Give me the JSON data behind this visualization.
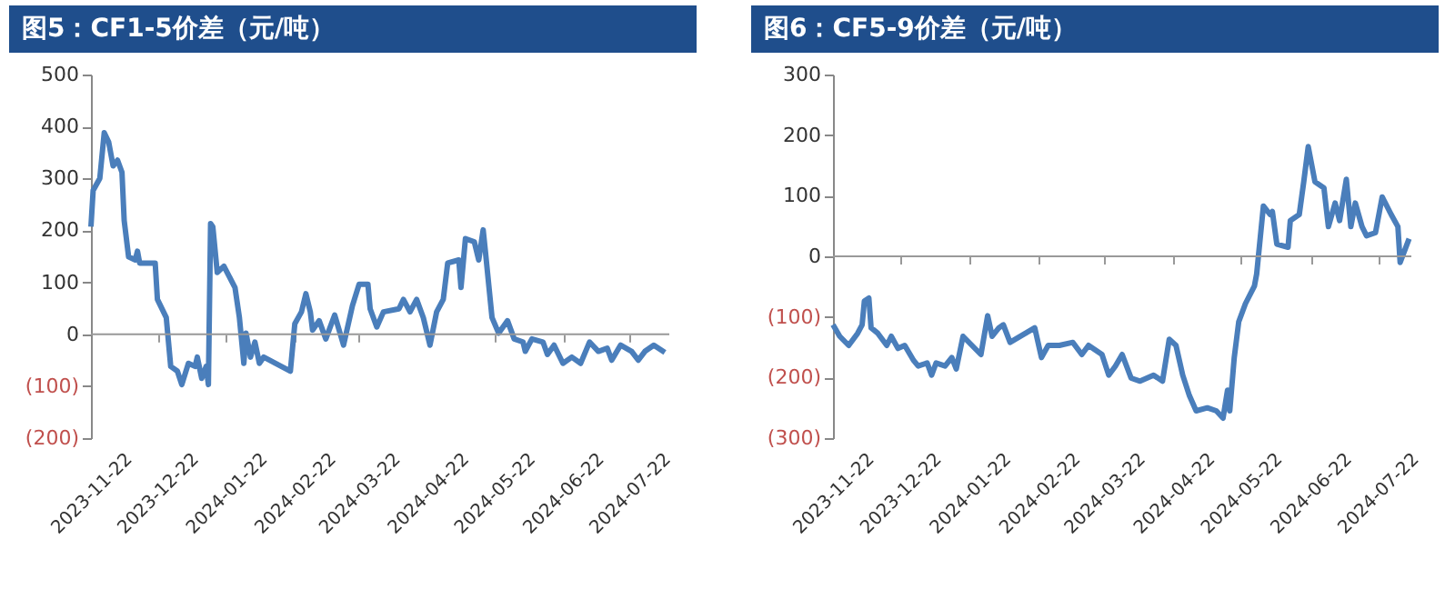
{
  "chart_data": [
    {
      "type": "line",
      "title": "图5：CF1-5价差（元/吨）",
      "grid": false,
      "ref_lines": [
        {
          "axis": "y",
          "value": 0,
          "color": "#999999"
        }
      ],
      "marker": "none",
      "line_style": "solid",
      "x": [
        "2023-11-22",
        "2023-11-23",
        "2023-11-26",
        "2023-11-28",
        "2023-11-30",
        "2023-12-02",
        "2023-12-04",
        "2023-12-06",
        "2023-12-07",
        "2023-12-09",
        "2023-12-12",
        "2023-12-13",
        "2023-12-14",
        "2023-12-21",
        "2023-12-22",
        "2023-12-26",
        "2023-12-28",
        "2023-12-31",
        "2024-01-02",
        "2024-01-05",
        "2024-01-08",
        "2024-01-09",
        "2024-01-11",
        "2024-01-13",
        "2024-01-14",
        "2024-01-15",
        "2024-01-16",
        "2024-01-18",
        "2024-01-21",
        "2024-01-26",
        "2024-01-28",
        "2024-01-30",
        "2024-01-31",
        "2024-02-02",
        "2024-02-04",
        "2024-02-06",
        "2024-02-08",
        "2024-02-20",
        "2024-02-22",
        "2024-02-25",
        "2024-02-27",
        "2024-02-29",
        "2024-03-01",
        "2024-03-04",
        "2024-03-07",
        "2024-03-11",
        "2024-03-15",
        "2024-03-19",
        "2024-03-22",
        "2024-03-26",
        "2024-03-27",
        "2024-03-30",
        "2024-04-02",
        "2024-04-09",
        "2024-04-11",
        "2024-04-14",
        "2024-04-17",
        "2024-04-20",
        "2024-04-23",
        "2024-04-26",
        "2024-04-29",
        "2024-05-01",
        "2024-05-06",
        "2024-05-07",
        "2024-05-09",
        "2024-05-13",
        "2024-05-15",
        "2024-05-17",
        "2024-05-18",
        "2024-05-21",
        "2024-05-24",
        "2024-05-28",
        "2024-05-31",
        "2024-06-04",
        "2024-06-05",
        "2024-06-08",
        "2024-06-13",
        "2024-06-15",
        "2024-06-18",
        "2024-06-22",
        "2024-06-26",
        "2024-06-30",
        "2024-07-04",
        "2024-07-08",
        "2024-07-12",
        "2024-07-14",
        "2024-07-18",
        "2024-07-23",
        "2024-07-26",
        "2024-07-29",
        "2024-08-02",
        "2024-08-07"
      ],
      "series": [
        {
          "color": "#4a7ebb",
          "values": [
            207,
            277,
            300,
            388,
            370,
            324,
            335,
            312,
            219,
            149,
            143,
            160,
            137,
            137,
            67,
            32,
            -62,
            -71,
            -97,
            -56,
            -62,
            -44,
            -85,
            -62,
            -97,
            213,
            207,
            119,
            131,
            90,
            32,
            -56,
            2,
            -44,
            -15,
            -56,
            -44,
            -71,
            20,
            43,
            78,
            43,
            8,
            26,
            -9,
            37,
            -21,
            55,
            96,
            96,
            49,
            14,
            43,
            49,
            67,
            43,
            67,
            32,
            -21,
            43,
            67,
            137,
            143,
            90,
            184,
            178,
            143,
            201,
            160,
            32,
            2,
            26,
            -9,
            -15,
            -33,
            -9,
            -15,
            -39,
            -21,
            -56,
            -44,
            -56,
            -15,
            -33,
            -27,
            -50,
            -21,
            -33,
            -50,
            -33,
            -21,
            -35
          ]
        }
      ],
      "xlim": [
        "2023-11-22",
        "2024-08-09"
      ],
      "xticks": [
        "2023-11-22",
        "2023-12-22",
        "2024-01-22",
        "2024-02-22",
        "2024-03-22",
        "2024-04-22",
        "2024-05-22",
        "2024-06-22",
        "2024-07-22"
      ],
      "ylim": [
        -200,
        500
      ],
      "yticks": [
        {
          "value": -200,
          "label": "(200)"
        },
        {
          "value": -100,
          "label": "(100)"
        },
        0,
        100,
        200,
        300,
        400,
        500
      ]
    },
    {
      "type": "line",
      "title": "图6：CF5-9价差（元/吨）",
      "grid": false,
      "ref_lines": [
        {
          "axis": "y",
          "value": 0,
          "color": "#999999"
        }
      ],
      "marker": "none",
      "line_style": "solid",
      "x": [
        "2023-11-22",
        "2023-11-25",
        "2023-11-29",
        "2023-12-03",
        "2023-12-05",
        "2023-12-06",
        "2023-12-08",
        "2023-12-09",
        "2023-12-12",
        "2023-12-16",
        "2023-12-18",
        "2023-12-21",
        "2023-12-24",
        "2023-12-28",
        "2023-12-30",
        "2024-01-03",
        "2024-01-05",
        "2024-01-07",
        "2024-01-11",
        "2024-01-14",
        "2024-01-16",
        "2024-01-19",
        "2024-01-23",
        "2024-01-27",
        "2024-01-30",
        "2024-02-01",
        "2024-02-04",
        "2024-02-06",
        "2024-02-09",
        "2024-02-20",
        "2024-02-23",
        "2024-02-26",
        "2024-03-02",
        "2024-03-08",
        "2024-03-12",
        "2024-03-15",
        "2024-03-21",
        "2024-03-24",
        "2024-03-27",
        "2024-03-30",
        "2024-04-03",
        "2024-04-07",
        "2024-04-13",
        "2024-04-17",
        "2024-04-20",
        "2024-04-23",
        "2024-04-26",
        "2024-04-29",
        "2024-05-02",
        "2024-05-07",
        "2024-05-11",
        "2024-05-14",
        "2024-05-16",
        "2024-05-17",
        "2024-05-19",
        "2024-05-21",
        "2024-05-24",
        "2024-05-28",
        "2024-05-29",
        "2024-06-01",
        "2024-06-04",
        "2024-06-05",
        "2024-06-07",
        "2024-06-12",
        "2024-06-13",
        "2024-06-17",
        "2024-06-19",
        "2024-06-21",
        "2024-06-24",
        "2024-06-28",
        "2024-06-30",
        "2024-07-03",
        "2024-07-05",
        "2024-07-08",
        "2024-07-10",
        "2024-07-12",
        "2024-07-15",
        "2024-07-17",
        "2024-07-21",
        "2024-07-24",
        "2024-07-28",
        "2024-07-31",
        "2024-08-01",
        "2024-08-05"
      ],
      "series": [
        {
          "color": "#4a7ebb",
          "values": [
            -113,
            -132,
            -147,
            -127,
            -113,
            -74,
            -69,
            -118,
            -127,
            -147,
            -132,
            -152,
            -147,
            -172,
            -181,
            -176,
            -196,
            -176,
            -181,
            -167,
            -186,
            -132,
            -147,
            -162,
            -98,
            -132,
            -118,
            -113,
            -142,
            -118,
            -167,
            -147,
            -147,
            -142,
            -162,
            -147,
            -162,
            -196,
            -181,
            -162,
            -201,
            -206,
            -196,
            -206,
            -137,
            -147,
            -196,
            -230,
            -255,
            -250,
            -255,
            -267,
            -221,
            -255,
            -167,
            -108,
            -78,
            -49,
            -29,
            83,
            69,
            74,
            20,
            15,
            59,
            69,
            123,
            181,
            123,
            113,
            49,
            88,
            59,
            127,
            49,
            88,
            49,
            34,
            39,
            98,
            69,
            49,
            -10,
            29
          ]
        }
      ],
      "xlim": [
        "2023-11-22",
        "2024-08-06"
      ],
      "xticks": [
        "2023-11-22",
        "2023-12-22",
        "2024-01-22",
        "2024-02-22",
        "2024-03-22",
        "2024-04-22",
        "2024-05-22",
        "2024-06-22",
        "2024-07-22"
      ],
      "ylim": [
        -300,
        300
      ],
      "yticks": [
        {
          "value": -300,
          "label": "(300)"
        },
        {
          "value": -200,
          "label": "(200)"
        },
        {
          "value": -100,
          "label": "(100)"
        },
        0,
        100,
        200,
        300
      ]
    }
  ]
}
